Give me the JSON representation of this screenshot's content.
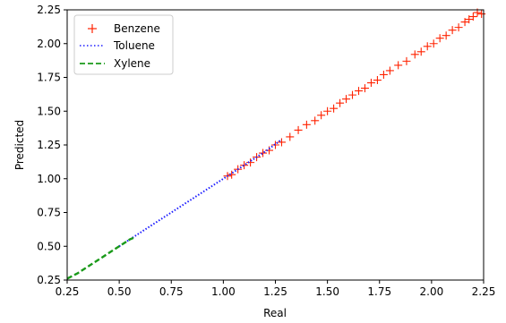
{
  "chart_data": {
    "type": "scatter",
    "title": "",
    "xlabel": "Real",
    "ylabel": "Predicted",
    "xlim": [
      0.25,
      2.25
    ],
    "ylim": [
      0.25,
      2.25
    ],
    "xticks": [
      "0.25",
      "0.50",
      "0.75",
      "1.00",
      "1.25",
      "1.50",
      "1.75",
      "2.00",
      "2.25"
    ],
    "yticks": [
      "0.25",
      "0.50",
      "0.75",
      "1.00",
      "1.25",
      "1.50",
      "1.75",
      "2.00",
      "2.25"
    ],
    "grid": false,
    "legend_position": "top-left",
    "series": [
      {
        "name": "Benzene",
        "style": "plus-markers",
        "color": "#ff2200",
        "x": [
          1.02,
          1.04,
          1.07,
          1.1,
          1.13,
          1.16,
          1.19,
          1.22,
          1.25,
          1.28,
          1.32,
          1.36,
          1.4,
          1.44,
          1.47,
          1.5,
          1.53,
          1.56,
          1.59,
          1.62,
          1.65,
          1.68,
          1.71,
          1.74,
          1.77,
          1.8,
          1.84,
          1.88,
          1.92,
          1.95,
          1.98,
          2.01,
          2.04,
          2.07,
          2.1,
          2.13,
          2.16,
          2.18,
          2.2,
          2.22,
          2.24
        ],
        "y": [
          1.02,
          1.03,
          1.07,
          1.1,
          1.12,
          1.16,
          1.19,
          1.21,
          1.25,
          1.27,
          1.31,
          1.36,
          1.4,
          1.43,
          1.47,
          1.5,
          1.52,
          1.56,
          1.59,
          1.62,
          1.65,
          1.67,
          1.71,
          1.73,
          1.77,
          1.8,
          1.84,
          1.87,
          1.92,
          1.94,
          1.98,
          2.0,
          2.04,
          2.06,
          2.1,
          2.12,
          2.16,
          2.18,
          2.2,
          2.23,
          2.22
        ]
      },
      {
        "name": "Toluene",
        "style": "dotted-line",
        "color": "#1f1fff",
        "x": [
          0.5,
          0.6,
          0.7,
          0.8,
          0.9,
          1.0,
          1.1,
          1.2,
          1.28
        ],
        "y": [
          0.5,
          0.6,
          0.7,
          0.8,
          0.9,
          1.0,
          1.1,
          1.2,
          1.29
        ]
      },
      {
        "name": "Xylene",
        "style": "dashed-line",
        "color": "#1a9a1a",
        "x": [
          0.25,
          0.3,
          0.35,
          0.4,
          0.45,
          0.5,
          0.55,
          0.58
        ],
        "y": [
          0.26,
          0.3,
          0.35,
          0.4,
          0.45,
          0.5,
          0.55,
          0.57
        ]
      }
    ]
  }
}
